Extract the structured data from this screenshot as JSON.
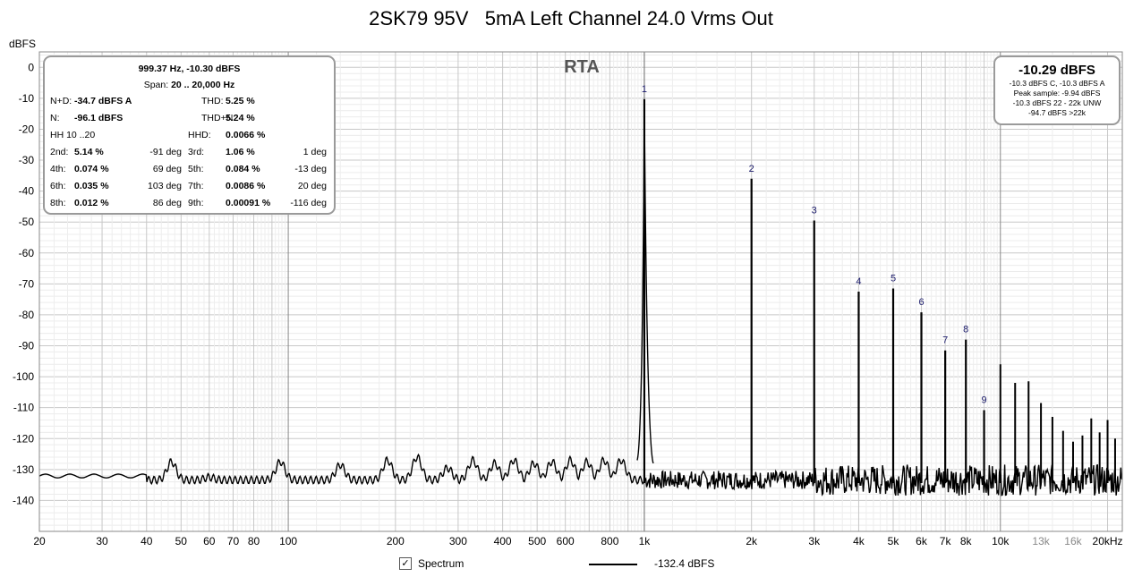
{
  "chart_data": {
    "type": "line",
    "title": "2SK79 95V   5mA Left Channel 24.0 Vrms Out",
    "ylabel": "dBFS",
    "xlabel": "",
    "x_scale": "log",
    "xlim": [
      20,
      22000
    ],
    "ylim": [
      -150,
      5
    ],
    "y_ticks": [
      0,
      -10,
      -20,
      -30,
      -40,
      -50,
      -60,
      -70,
      -80,
      -90,
      -100,
      -110,
      -120,
      -130,
      -140
    ],
    "x_ticks": [
      {
        "v": 20,
        "label": "20",
        "gray": false
      },
      {
        "v": 30,
        "label": "30",
        "gray": false
      },
      {
        "v": 40,
        "label": "40",
        "gray": false
      },
      {
        "v": 50,
        "label": "50",
        "gray": false
      },
      {
        "v": 60,
        "label": "60",
        "gray": false
      },
      {
        "v": 70,
        "label": "70",
        "gray": false
      },
      {
        "v": 80,
        "label": "80",
        "gray": false
      },
      {
        "v": 100,
        "label": "100",
        "gray": false
      },
      {
        "v": 200,
        "label": "200",
        "gray": false
      },
      {
        "v": 300,
        "label": "300",
        "gray": false
      },
      {
        "v": 400,
        "label": "400",
        "gray": false
      },
      {
        "v": 500,
        "label": "500",
        "gray": false
      },
      {
        "v": 600,
        "label": "600",
        "gray": false
      },
      {
        "v": 800,
        "label": "800",
        "gray": false
      },
      {
        "v": 1000,
        "label": "1k",
        "gray": false
      },
      {
        "v": 2000,
        "label": "2k",
        "gray": false
      },
      {
        "v": 3000,
        "label": "3k",
        "gray": false
      },
      {
        "v": 4000,
        "label": "4k",
        "gray": false
      },
      {
        "v": 5000,
        "label": "5k",
        "gray": false
      },
      {
        "v": 6000,
        "label": "6k",
        "gray": false
      },
      {
        "v": 7000,
        "label": "7k",
        "gray": false
      },
      {
        "v": 8000,
        "label": "8k",
        "gray": false
      },
      {
        "v": 10000,
        "label": "10k",
        "gray": false
      },
      {
        "v": 13000,
        "label": "13k",
        "gray": true
      },
      {
        "v": 16000,
        "label": "16k",
        "gray": true
      },
      {
        "v": 20000,
        "label": "20kHz",
        "gray": false
      }
    ],
    "harmonics": [
      {
        "n": "1",
        "f": 1000,
        "db": -10.3
      },
      {
        "n": "2",
        "f": 2000,
        "db": -36.0
      },
      {
        "n": "3",
        "f": 3000,
        "db": -49.5
      },
      {
        "n": "4",
        "f": 4000,
        "db": -72.5
      },
      {
        "n": "5",
        "f": 5000,
        "db": -71.5
      },
      {
        "n": "6",
        "f": 6000,
        "db": -79.2
      },
      {
        "n": "7",
        "f": 7000,
        "db": -91.5
      },
      {
        "n": "8",
        "f": 8000,
        "db": -88.0
      },
      {
        "n": "9",
        "f": 9000,
        "db": -110.8
      }
    ],
    "extra_peaks": [
      {
        "f": 10000,
        "db": -96.0
      },
      {
        "f": 11000,
        "db": -102.0
      },
      {
        "f": 12000,
        "db": -101.5
      },
      {
        "f": 13000,
        "db": -108.5
      },
      {
        "f": 14000,
        "db": -113.0
      },
      {
        "f": 15000,
        "db": -117.5
      },
      {
        "f": 16000,
        "db": -121.0
      },
      {
        "f": 17000,
        "db": -119.0
      },
      {
        "f": 18000,
        "db": -113.5
      },
      {
        "f": 19000,
        "db": -118.0
      },
      {
        "f": 20000,
        "db": -114.0
      },
      {
        "f": 21000,
        "db": -120.0
      }
    ],
    "low_bumps": [
      {
        "f": 47,
        "db": -126.5
      },
      {
        "f": 60,
        "db": -131.5
      },
      {
        "f": 95,
        "db": -126.5
      },
      {
        "f": 140,
        "db": -127.5
      },
      {
        "f": 190,
        "db": -126.0
      },
      {
        "f": 230,
        "db": -125.0
      },
      {
        "f": 280,
        "db": -128.5
      },
      {
        "f": 330,
        "db": -126.0
      },
      {
        "f": 380,
        "db": -127.0
      },
      {
        "f": 430,
        "db": -126.0
      },
      {
        "f": 490,
        "db": -127.0
      },
      {
        "f": 550,
        "db": -126.5
      },
      {
        "f": 620,
        "db": -126.0
      },
      {
        "f": 690,
        "db": -126.5
      },
      {
        "f": 770,
        "db": -126.0
      },
      {
        "f": 860,
        "db": -126.0
      }
    ],
    "noise_floor_db": -132.4,
    "series": [
      {
        "name": "Spectrum",
        "level": "-132.4 dBFS",
        "color": "#000000"
      }
    ]
  },
  "rta_label": "RTA",
  "left_box": {
    "line1": "999.37 Hz, -10.30 dBFS",
    "span_label": "Span:",
    "span_value": "20 .. 20,000 Hz",
    "rows": [
      [
        {
          "t": "N+D:",
          "b": "-34.7 dBFS A"
        },
        {
          "t": "THD:",
          "b": "5.25 %"
        }
      ],
      [
        {
          "t": "N:",
          "b": "-96.1 dBFS"
        },
        {
          "t": "THD+N:",
          "b": "5.24 %"
        }
      ],
      [
        {
          "t": "HH 10 ..20",
          "b": ""
        },
        {
          "t": "HHD:",
          "b": "0.0066 %"
        }
      ],
      [
        {
          "t": "2nd:",
          "b": "5.14 %",
          "d": "-91 deg"
        },
        {
          "t": "3rd:",
          "b": "1.06 %",
          "d": "1 deg"
        }
      ],
      [
        {
          "t": "4th:",
          "b": "0.074 %",
          "d": "69 deg"
        },
        {
          "t": "5th:",
          "b": "0.084 %",
          "d": "-13 deg"
        }
      ],
      [
        {
          "t": "6th:",
          "b": "0.035 %",
          "d": "103 deg"
        },
        {
          "t": "7th:",
          "b": "0.0086 %",
          "d": "20 deg"
        }
      ],
      [
        {
          "t": "8th:",
          "b": "0.012 %",
          "d": "86 deg"
        },
        {
          "t": "9th:",
          "b": "0.00091 %",
          "d": "-116 deg"
        }
      ]
    ]
  },
  "right_box": {
    "big": "-10.29 dBFS",
    "lines": [
      "-10.3 dBFS C, -10.3 dBFS A",
      "Peak sample: -9.94 dBFS",
      "-10.3 dBFS 22 - 22k UNW",
      "-94.7 dBFS >22k"
    ]
  },
  "legend": {
    "checked_symbol": "✓",
    "name": "Spectrum",
    "value": "-132.4 dBFS"
  }
}
